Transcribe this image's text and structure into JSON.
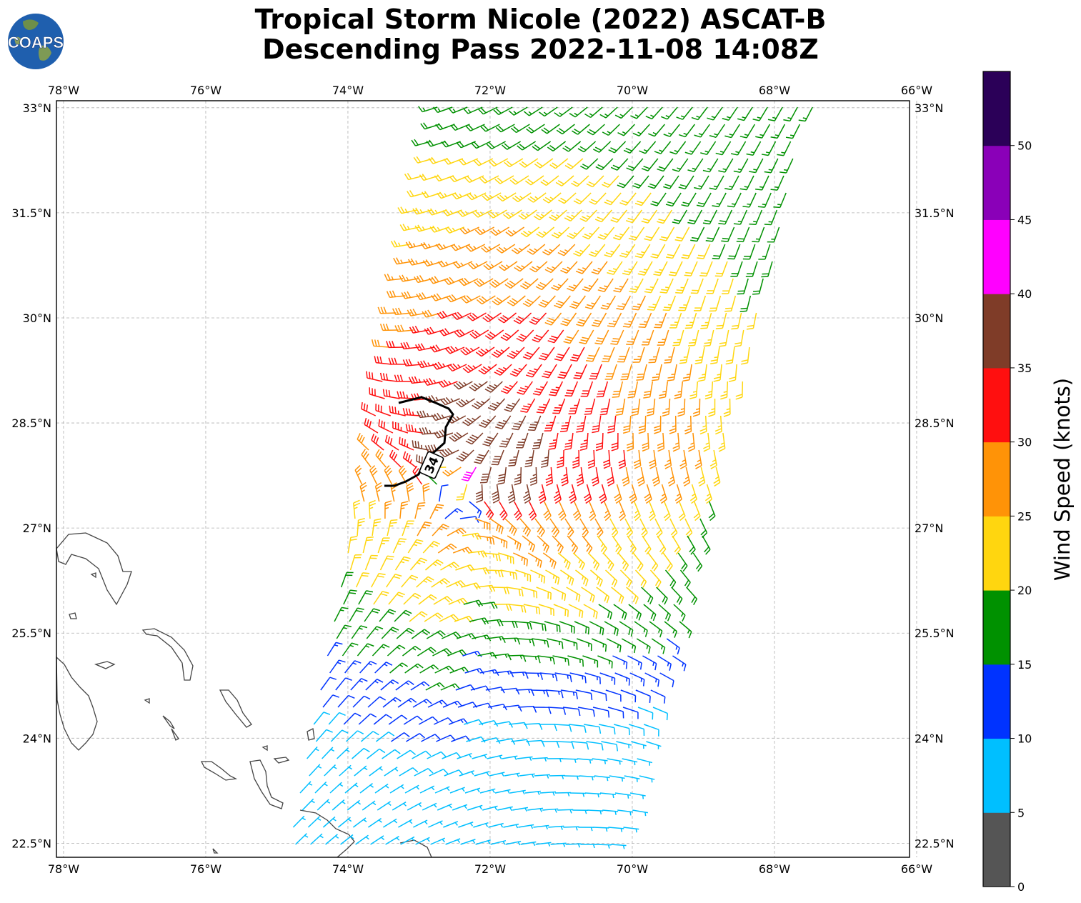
{
  "title": {
    "line1": "Tropical Storm Nicole (2022) ASCAT-B",
    "line2": "Descending Pass 2022-11-08 14:08Z"
  },
  "logo": {
    "text": "COAPS",
    "icon": "globe-icon"
  },
  "map": {
    "lon_range": [
      -78.1,
      -66.1
    ],
    "lat_range": [
      22.3,
      33.1
    ],
    "lon_ticks": [
      "78°W",
      "76°W",
      "74°W",
      "72°W",
      "70°W",
      "68°W",
      "66°W"
    ],
    "lat_ticks": [
      "33°N",
      "31.5°N",
      "30°N",
      "28.5°N",
      "27°N",
      "25.5°N",
      "24°N",
      "22.5°N"
    ],
    "gridlines": true,
    "contour_label": "34",
    "storm_center": {
      "lon": -72.5,
      "lat": 27.5
    }
  },
  "colorbar": {
    "label": "Wind Speed (knots)",
    "ticks": [
      "0",
      "5",
      "10",
      "15",
      "20",
      "25",
      "30",
      "35",
      "40",
      "45",
      "50"
    ],
    "colors": [
      "#555555",
      "#00bfff",
      "#0033ff",
      "#009100",
      "#ffd60f",
      "#ff9307",
      "#ff0f0f",
      "#7f3c28",
      "#ff00ff",
      "#8a00b8",
      "#2b0058"
    ]
  }
}
